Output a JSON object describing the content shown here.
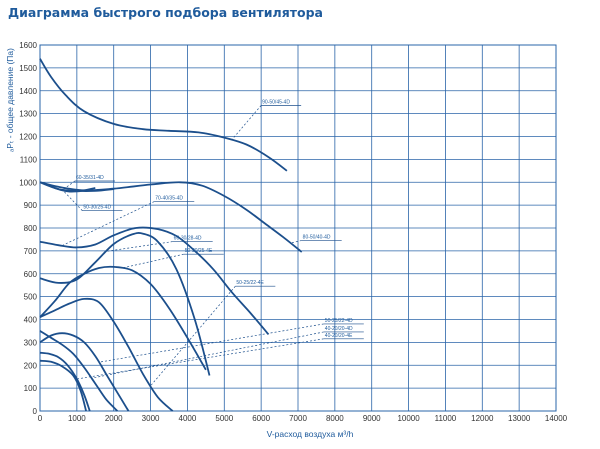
{
  "chart_data": {
    "type": "line",
    "title": "Диаграмма быстрого подбора вентилятора",
    "xlabel": "V-расход воздуха м³/h",
    "ylabel": "ₐPₜ - общее давление (Па)",
    "xlim": [
      0,
      14000
    ],
    "ylim": [
      0,
      1600
    ],
    "xticks": [
      0,
      1000,
      2000,
      3000,
      4000,
      5000,
      6000,
      7000,
      8000,
      9000,
      10000,
      11000,
      12000,
      13000,
      14000
    ],
    "yticks": [
      0,
      100,
      200,
      300,
      400,
      500,
      600,
      700,
      800,
      900,
      1000,
      1100,
      1200,
      1300,
      1400,
      1500,
      1600
    ],
    "grid": true,
    "colors": {
      "line": "#1c4f8c",
      "grid": "#2a64a8",
      "title": "#1f5b9c"
    },
    "series": [
      {
        "name": "90-50/45-4D",
        "x": [
          0,
          300,
          700,
          1200,
          2000,
          2800,
          3500,
          4300,
          5000,
          5600,
          6200,
          6700
        ],
        "y": [
          1540,
          1460,
          1380,
          1310,
          1255,
          1232,
          1225,
          1218,
          1195,
          1165,
          1110,
          1050
        ],
        "label_at": [
          6000,
          1340
        ],
        "anchor_x": 5200
      },
      {
        "name": "80-50/40-4D",
        "x": [
          0,
          500,
          1200,
          2000,
          3000,
          3800,
          4400,
          5000,
          5600,
          6100,
          6600,
          7100
        ],
        "y": [
          1000,
          980,
          965,
          972,
          990,
          1000,
          985,
          940,
          880,
          820,
          760,
          695
        ],
        "label_at": [
          7100,
          750
        ],
        "anchor_x": 6800
      },
      {
        "name": "70-40/35-4D",
        "x": [
          0,
          500,
          1000,
          1500,
          2000,
          2600,
          3200,
          3700,
          4200,
          4700,
          5200,
          5700,
          6200
        ],
        "y": [
          740,
          725,
          715,
          728,
          768,
          800,
          795,
          765,
          700,
          620,
          520,
          430,
          335
        ],
        "label_at": [
          3100,
          920
        ],
        "anchor_x": 600
      },
      {
        "name": "60-30/28-4D",
        "x": [
          0,
          500,
          1000,
          1500,
          2000,
          2500,
          2800,
          3200,
          3700,
          4200,
          4600
        ],
        "y": [
          580,
          560,
          575,
          650,
          730,
          772,
          775,
          740,
          620,
          400,
          155
        ],
        "label_at": [
          3600,
          745
        ],
        "anchor_x": 1800
      },
      {
        "name": "60-35/31-4D",
        "x": [
          0,
          600,
          1000,
          1500
        ],
        "y": [
          1000,
          965,
          960,
          975
        ],
        "label_at": [
          950,
          1010
        ],
        "anchor_x": 600
      },
      {
        "name": "50-30/25-4D",
        "x": [
          0,
          500,
          1000,
          1500,
          2000
        ],
        "y": [
          1000,
          970,
          962,
          962,
          970
        ],
        "label_at": [
          1150,
          880
        ],
        "anchor_x": 600
      },
      {
        "name": "50-30/25-4E",
        "x": [
          0,
          400,
          800,
          1200,
          1600,
          2000,
          2500,
          3000,
          3500,
          4000,
          4500
        ],
        "y": [
          410,
          480,
          560,
          600,
          625,
          630,
          615,
          555,
          450,
          320,
          180
        ],
        "label_at": [
          3900,
          690
        ],
        "anchor_x": 2200
      },
      {
        "name": "50-25/22-4E",
        "x": [
          0,
          400,
          800,
          1200,
          1600,
          2000,
          2400,
          2800,
          3200,
          3600
        ],
        "y": [
          410,
          440,
          470,
          490,
          475,
          390,
          280,
          160,
          60,
          0
        ],
        "label_at": [
          5300,
          550
        ],
        "anchor_x": 3000
      },
      {
        "name": "50-25/22-4D",
        "x": [
          0,
          300,
          600,
          900,
          1200,
          1500,
          1800,
          2100,
          2400
        ],
        "y": [
          300,
          330,
          340,
          330,
          300,
          240,
          160,
          80,
          0
        ],
        "label_at": [
          7700,
          385
        ],
        "anchor_x": 1600
      },
      {
        "name": "40-20/20-4D",
        "x": [
          0,
          300,
          600,
          900,
          1200,
          1500,
          1800,
          2100
        ],
        "y": [
          350,
          320,
          290,
          250,
          190,
          120,
          50,
          0
        ],
        "label_at": [
          7700,
          350
        ],
        "anchor_x": 1400
      },
      {
        "name": "40-20/20-4E",
        "x": [
          0,
          250,
          500,
          750,
          1000,
          1200,
          1350
        ],
        "y": [
          255,
          250,
          235,
          200,
          140,
          70,
          0
        ],
        "label_at": [
          7700,
          320
        ],
        "anchor_x": 1000
      },
      {
        "name": "",
        "x": [
          0,
          300,
          600,
          900,
          1100,
          1250
        ],
        "y": [
          220,
          215,
          195,
          155,
          90,
          0
        ]
      }
    ]
  }
}
